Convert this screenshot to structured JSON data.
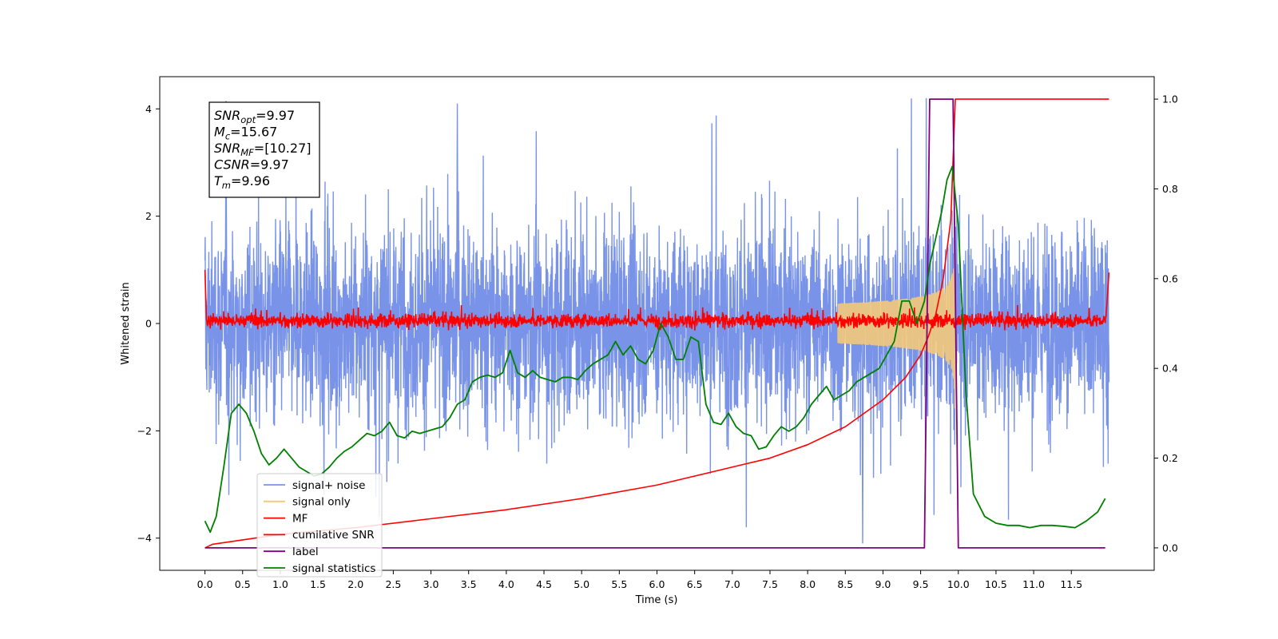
{
  "chart_data": {
    "type": "line",
    "xlabel": "Time (s)",
    "ylabel": "Whitened strain",
    "xlim": [
      -0.6,
      12.6
    ],
    "ylim_left": [
      -4.6,
      4.6
    ],
    "ylim_right": [
      -0.05,
      1.05
    ],
    "x_ticks": [
      "0.0",
      "0.5",
      "1.0",
      "1.5",
      "2.0",
      "2.5",
      "3.0",
      "3.5",
      "4.0",
      "4.5",
      "5.0",
      "5.5",
      "6.0",
      "6.5",
      "7.0",
      "7.5",
      "8.0",
      "8.5",
      "9.0",
      "9.5",
      "10.0",
      "10.5",
      "11.0",
      "11.5"
    ],
    "y_ticks_left": [
      "−4",
      "−2",
      "0",
      "2",
      "4"
    ],
    "y_ticks_right": [
      "0.0",
      "0.2",
      "0.4",
      "0.6",
      "0.8",
      "1.0"
    ],
    "grid": false,
    "legend_position": "lower-left",
    "annotation": {
      "lines": [
        {
          "var": "SNR",
          "sub": "opt",
          "value": "=9.97"
        },
        {
          "var": "M",
          "sub": "c",
          "value": "=15.67"
        },
        {
          "var": "SNR",
          "sub": "MF",
          "value": "=[10.27]"
        },
        {
          "var": "CSNR",
          "sub": "",
          "value": "=9.97"
        },
        {
          "var": "T",
          "sub": "m",
          "value": "=9.96"
        }
      ]
    },
    "series": [
      {
        "name": "signal+ noise",
        "color": "#7893e8",
        "axis": "left",
        "x_range": [
          0.0,
          12.0
        ],
        "amplitude_envelope": [
          -4.1,
          4.2
        ],
        "note_points": [
          [
            0.28,
            4.15
          ],
          [
            3.35,
            4.1
          ],
          [
            8.73,
            -4.1
          ]
        ]
      },
      {
        "name": "signal only",
        "color": "#f3c97a",
        "axis": "left",
        "chirp_peak_time": 9.96,
        "peak_amplitude": 1.7
      },
      {
        "name": "MF",
        "color": "#ff0000",
        "axis": "left",
        "x_range": [
          0.0,
          12.0
        ],
        "baseline": 0.05,
        "noise_amplitude": 0.15,
        "edge_values": [
          1.0,
          0.95
        ]
      },
      {
        "name": "cumilative SNR",
        "color": "#ff0000",
        "axis": "right",
        "x": [
          0.0,
          0.1,
          1.0,
          2.0,
          3.0,
          4.0,
          5.0,
          6.0,
          7.0,
          7.5,
          8.0,
          8.5,
          9.0,
          9.3,
          9.5,
          9.6,
          9.7,
          9.8,
          9.9,
          9.96,
          10.0,
          12.0
        ],
        "y": [
          0.0,
          0.008,
          0.03,
          0.045,
          0.065,
          0.085,
          0.11,
          0.14,
          0.18,
          0.2,
          0.23,
          0.27,
          0.33,
          0.38,
          0.43,
          0.47,
          0.52,
          0.6,
          0.73,
          1.0,
          1.0,
          1.0
        ]
      },
      {
        "name": "label",
        "color": "#800080",
        "axis": "right",
        "x": [
          0.0,
          9.55,
          9.62,
          9.93,
          10.0,
          11.95
        ],
        "y": [
          0.0,
          0.0,
          1.0,
          1.0,
          0.0,
          0.0
        ]
      },
      {
        "name": "signal statistics",
        "color": "#008000",
        "axis": "right",
        "x": [
          0.0,
          0.07,
          0.15,
          0.25,
          0.35,
          0.45,
          0.55,
          0.65,
          0.75,
          0.85,
          0.95,
          1.05,
          1.15,
          1.25,
          1.35,
          1.45,
          1.55,
          1.65,
          1.75,
          1.85,
          1.95,
          2.05,
          2.15,
          2.25,
          2.35,
          2.45,
          2.55,
          2.65,
          2.75,
          2.85,
          2.95,
          3.05,
          3.15,
          3.25,
          3.35,
          3.45,
          3.55,
          3.65,
          3.75,
          3.85,
          3.95,
          4.05,
          4.15,
          4.25,
          4.35,
          4.45,
          4.55,
          4.65,
          4.75,
          4.85,
          4.95,
          5.05,
          5.15,
          5.25,
          5.35,
          5.45,
          5.55,
          5.65,
          5.75,
          5.85,
          5.95,
          6.05,
          6.15,
          6.25,
          6.35,
          6.45,
          6.55,
          6.65,
          6.75,
          6.85,
          6.95,
          7.05,
          7.15,
          7.25,
          7.35,
          7.45,
          7.55,
          7.65,
          7.75,
          7.85,
          7.95,
          8.05,
          8.15,
          8.25,
          8.35,
          8.45,
          8.55,
          8.65,
          8.75,
          8.85,
          8.95,
          9.05,
          9.15,
          9.25,
          9.35,
          9.45,
          9.55,
          9.62,
          9.7,
          9.78,
          9.85,
          9.92,
          10.0,
          10.1,
          10.2,
          10.35,
          10.5,
          10.65,
          10.8,
          10.95,
          11.1,
          11.25,
          11.4,
          11.55,
          11.7,
          11.85,
          11.95
        ],
        "y": [
          0.06,
          0.035,
          0.07,
          0.18,
          0.3,
          0.32,
          0.3,
          0.26,
          0.21,
          0.185,
          0.2,
          0.22,
          0.2,
          0.18,
          0.17,
          0.16,
          0.165,
          0.18,
          0.2,
          0.215,
          0.225,
          0.24,
          0.255,
          0.25,
          0.26,
          0.28,
          0.25,
          0.245,
          0.26,
          0.255,
          0.26,
          0.265,
          0.27,
          0.29,
          0.32,
          0.33,
          0.37,
          0.38,
          0.385,
          0.38,
          0.39,
          0.44,
          0.39,
          0.38,
          0.395,
          0.38,
          0.375,
          0.37,
          0.38,
          0.38,
          0.375,
          0.395,
          0.41,
          0.42,
          0.43,
          0.46,
          0.43,
          0.45,
          0.42,
          0.41,
          0.44,
          0.5,
          0.47,
          0.42,
          0.42,
          0.47,
          0.46,
          0.32,
          0.28,
          0.275,
          0.3,
          0.27,
          0.255,
          0.25,
          0.22,
          0.225,
          0.25,
          0.27,
          0.26,
          0.27,
          0.29,
          0.32,
          0.34,
          0.36,
          0.33,
          0.34,
          0.35,
          0.37,
          0.38,
          0.39,
          0.4,
          0.43,
          0.46,
          0.55,
          0.55,
          0.5,
          0.55,
          0.63,
          0.69,
          0.75,
          0.82,
          0.85,
          0.72,
          0.35,
          0.12,
          0.07,
          0.055,
          0.05,
          0.05,
          0.045,
          0.05,
          0.05,
          0.048,
          0.045,
          0.06,
          0.08,
          0.11
        ]
      }
    ]
  }
}
